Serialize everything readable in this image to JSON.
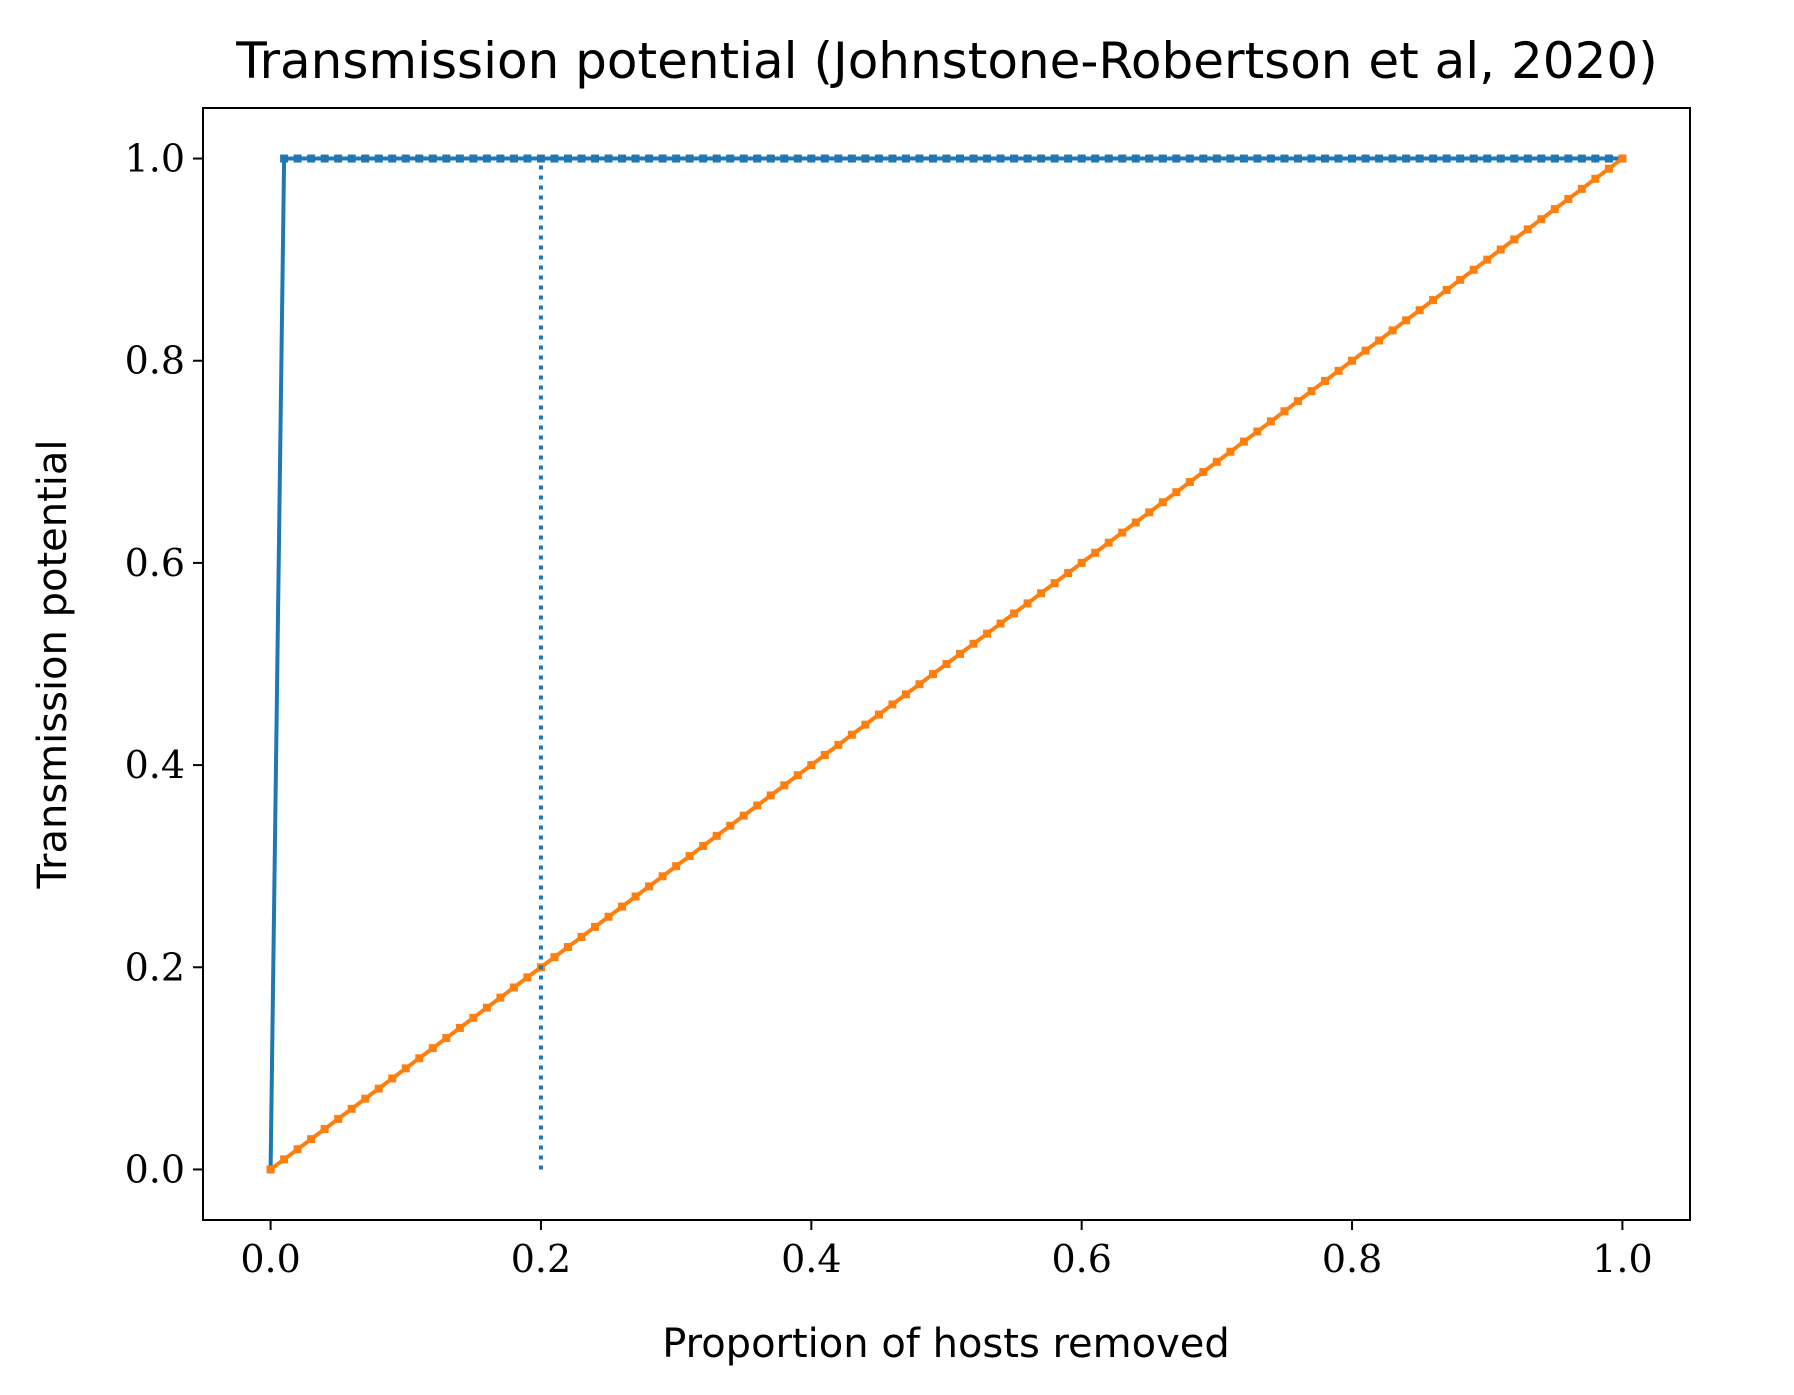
{
  "chart_data": {
    "type": "line",
    "title": "Transmission potential (Johnstone-Robertson et al, 2020)",
    "xlabel": "Proportion of hosts removed",
    "ylabel": "Transmission potential",
    "xlim": [
      -0.05,
      1.05
    ],
    "ylim": [
      -0.05,
      1.05
    ],
    "xticks": [
      "0.0",
      "0.2",
      "0.4",
      "0.6",
      "0.8",
      "1.0"
    ],
    "yticks": [
      "0.0",
      "0.2",
      "0.4",
      "0.6",
      "0.8",
      "1.0"
    ],
    "grid": false,
    "colors": {
      "series_1": "#1f77b4",
      "series_2": "#ff7f0e"
    },
    "series": [
      {
        "style": "solid+markers",
        "color": "#1f77b4",
        "points": [
          [
            0.0,
            0.0
          ],
          [
            0.01,
            1.0
          ],
          [
            1.0,
            1.0
          ]
        ],
        "marker_step": 0.01
      },
      {
        "style": "solid+markers",
        "color": "#ff7f0e",
        "points": [
          [
            0.0,
            0.0
          ],
          [
            1.0,
            1.0
          ]
        ],
        "marker_step": 0.01
      }
    ],
    "annotations": [
      {
        "type": "vline",
        "style": "dotted",
        "color": "#1f77b4",
        "x": 0.2,
        "y_from": 0.0,
        "y_to": 1.0
      }
    ]
  }
}
